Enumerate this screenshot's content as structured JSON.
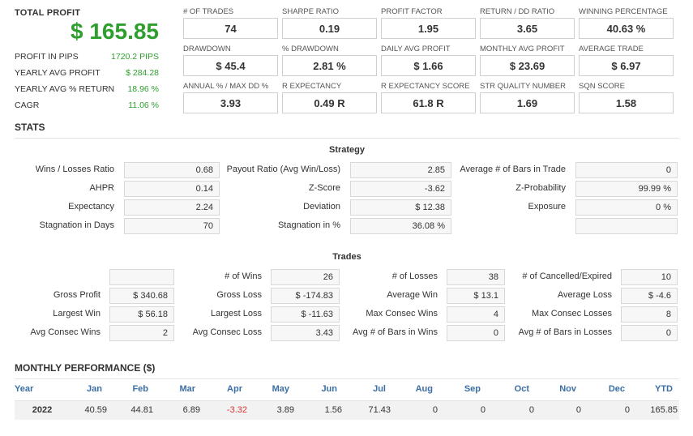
{
  "summary": {
    "total_label": "TOTAL PROFIT",
    "total_value": "$ 165.85",
    "rows": [
      {
        "label": "PROFIT IN PIPS",
        "value": "1720.2 PIPS"
      },
      {
        "label": "YEARLY AVG PROFIT",
        "value": "$ 284.28"
      },
      {
        "label": "YEARLY AVG % RETURN",
        "value": "18.96 %"
      },
      {
        "label": "CAGR",
        "value": "11.06 %"
      }
    ]
  },
  "metrics": [
    {
      "label": "# OF TRADES",
      "value": "74"
    },
    {
      "label": "SHARPE RATIO",
      "value": "0.19"
    },
    {
      "label": "PROFIT FACTOR",
      "value": "1.95"
    },
    {
      "label": "RETURN / DD RATIO",
      "value": "3.65"
    },
    {
      "label": "WINNING PERCENTAGE",
      "value": "40.63 %"
    },
    {
      "label": "DRAWDOWN",
      "value": "$ 45.4"
    },
    {
      "label": "% DRAWDOWN",
      "value": "2.81 %"
    },
    {
      "label": "DAILY AVG PROFIT",
      "value": "$ 1.66"
    },
    {
      "label": "MONTHLY AVG PROFIT",
      "value": "$ 23.69"
    },
    {
      "label": "AVERAGE TRADE",
      "value": "$ 6.97"
    },
    {
      "label": "ANNUAL % / MAX DD %",
      "value": "3.93"
    },
    {
      "label": "R EXPECTANCY",
      "value": "0.49 R"
    },
    {
      "label": "R EXPECTANCY SCORE",
      "value": "61.8 R"
    },
    {
      "label": "STR QUALITY NUMBER",
      "value": "1.69"
    },
    {
      "label": "SQN SCORE",
      "value": "1.58"
    }
  ],
  "stats": {
    "title": "STATS",
    "strategy_title": "Strategy",
    "strategy": [
      [
        {
          "label": "Wins / Losses Ratio",
          "value": "0.68"
        },
        {
          "label": "Payout Ratio (Avg Win/Loss)",
          "value": "2.85"
        },
        {
          "label": "Average # of Bars in Trade",
          "value": "0"
        }
      ],
      [
        {
          "label": "AHPR",
          "value": "0.14"
        },
        {
          "label": "Z-Score",
          "value": "-3.62"
        },
        {
          "label": "Z-Probability",
          "value": "99.99 %"
        }
      ],
      [
        {
          "label": "Expectancy",
          "value": "2.24"
        },
        {
          "label": "Deviation",
          "value": "$ 12.38"
        },
        {
          "label": "Exposure",
          "value": "0 %"
        }
      ],
      [
        {
          "label": "Stagnation in Days",
          "value": "70"
        },
        {
          "label": "Stagnation in %",
          "value": "36.08 %"
        },
        {
          "label": "",
          "value": ""
        }
      ]
    ],
    "trades_title": "Trades",
    "trades": [
      [
        {
          "label": "",
          "value": ""
        },
        {
          "label": "# of Wins",
          "value": "26"
        },
        {
          "label": "# of Losses",
          "value": "38"
        },
        {
          "label": "# of Cancelled/Expired",
          "value": "10"
        }
      ],
      [
        {
          "label": "Gross Profit",
          "value": "$ 340.68"
        },
        {
          "label": "Gross Loss",
          "value": "$ -174.83"
        },
        {
          "label": "Average Win",
          "value": "$ 13.1"
        },
        {
          "label": "Average Loss",
          "value": "$ -4.6"
        }
      ],
      [
        {
          "label": "Largest Win",
          "value": "$ 56.18"
        },
        {
          "label": "Largest Loss",
          "value": "$ -11.63"
        },
        {
          "label": "Max Consec Wins",
          "value": "4"
        },
        {
          "label": "Max Consec Losses",
          "value": "8"
        }
      ],
      [
        {
          "label": "Avg Consec Wins",
          "value": "2"
        },
        {
          "label": "Avg Consec Loss",
          "value": "3.43"
        },
        {
          "label": "Avg # of Bars in Wins",
          "value": "0"
        },
        {
          "label": "Avg # of Bars in Losses",
          "value": "0"
        }
      ]
    ]
  },
  "monthly": {
    "title": "MONTHLY PERFORMANCE ($)",
    "headers": [
      "Year",
      "Jan",
      "Feb",
      "Mar",
      "Apr",
      "May",
      "Jun",
      "Jul",
      "Aug",
      "Sep",
      "Oct",
      "Nov",
      "Dec",
      "YTD"
    ],
    "rows": [
      [
        "2022",
        "40.59",
        "44.81",
        "6.89",
        "-3.32",
        "3.89",
        "1.56",
        "71.43",
        "0",
        "0",
        "0",
        "0",
        "0",
        "165.85"
      ]
    ]
  },
  "colors": {
    "positive": "#2e9e2e",
    "negative": "#dd3333",
    "header_blue": "#3a6ea5"
  }
}
